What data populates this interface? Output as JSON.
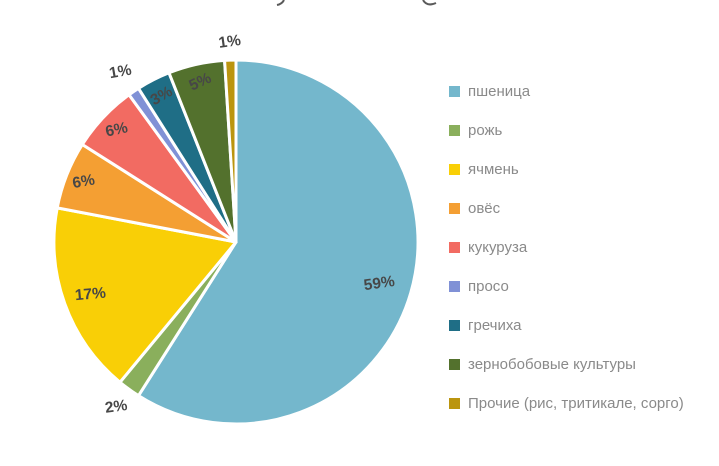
{
  "chart_data": {
    "type": "pie",
    "title": "",
    "note": "title cropped off at top of screenshot",
    "legend_position": "right",
    "grid": false,
    "categories": [
      "пшеница",
      "рожь",
      "ячмень",
      "овёс",
      "кукуруза",
      "просо",
      "гречиха",
      "зернобобовые культуры",
      "Прочие (рис, тритикале, сорго)"
    ],
    "values": [
      59,
      2,
      17,
      6,
      6,
      1,
      3,
      5,
      1
    ],
    "data_labels": [
      "59%",
      "2%",
      "17%",
      "6%",
      "6%",
      "1%",
      "3%",
      "5%",
      "1%"
    ],
    "colors": [
      "#74B7CC",
      "#8AAF5C",
      "#F9CF06",
      "#F49F33",
      "#F26B62",
      "#8091D6",
      "#1F6E86",
      "#53712D",
      "#BB950F"
    ],
    "label_color": "#474747",
    "legend_text_color": "#8a8a8a",
    "background_color": "#ffffff"
  }
}
